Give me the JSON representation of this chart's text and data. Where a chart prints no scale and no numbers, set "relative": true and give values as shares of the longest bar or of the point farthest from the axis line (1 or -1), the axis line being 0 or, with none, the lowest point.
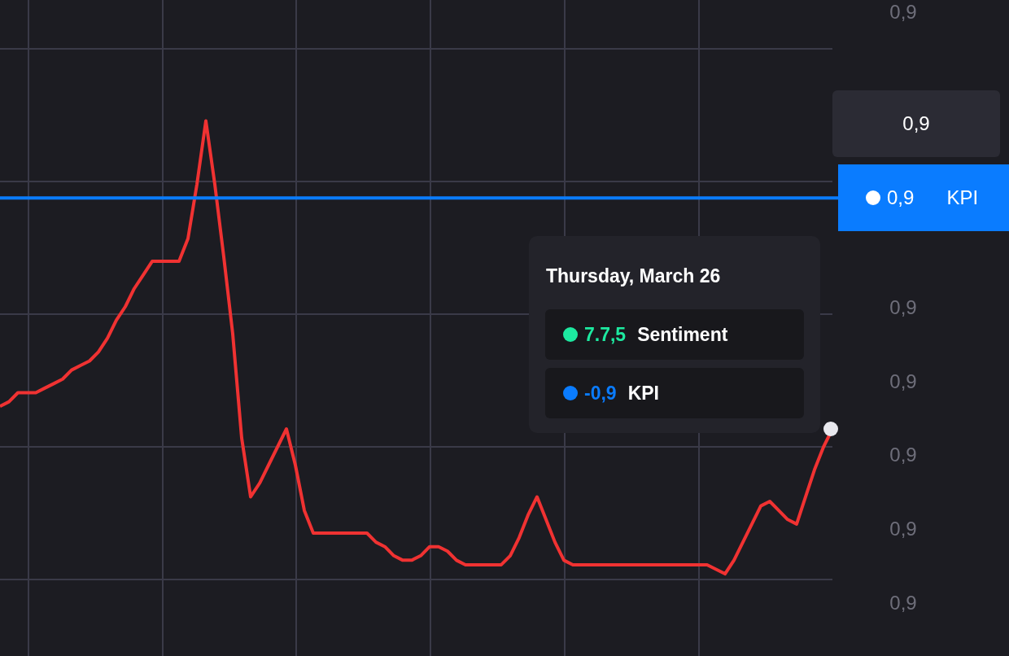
{
  "chart_data": {
    "type": "line",
    "relative": true,
    "categories": [
      null,
      null,
      null,
      null,
      null,
      null,
      null,
      null,
      null,
      null,
      null,
      null,
      null,
      null,
      null,
      null,
      null,
      null,
      null,
      null,
      null,
      null,
      null,
      null,
      null,
      null,
      null,
      null,
      null,
      null,
      null,
      null,
      null,
      null,
      null,
      null,
      null,
      null,
      null,
      null,
      null,
      null,
      null,
      null,
      null,
      null,
      null,
      null,
      null,
      null,
      null,
      null,
      null,
      null,
      null,
      null,
      null,
      null,
      null,
      null,
      null,
      null,
      null,
      null,
      null,
      null,
      null,
      null,
      null,
      null,
      null,
      null,
      null,
      null,
      null,
      null,
      null,
      null,
      null,
      null,
      null,
      null,
      null,
      null,
      null,
      null,
      null,
      null,
      null,
      null,
      null,
      null,
      null,
      null
    ],
    "series": [
      {
        "color": "#f03232",
        "values": [
          0.37,
          0.38,
          0.4,
          0.4,
          0.4,
          0.41,
          0.42,
          0.43,
          0.45,
          0.46,
          0.47,
          0.49,
          0.52,
          0.56,
          0.59,
          0.63,
          0.66,
          0.69,
          0.69,
          0.69,
          0.69,
          0.74,
          0.86,
          1.0,
          0.86,
          0.7,
          0.53,
          0.3,
          0.17,
          0.2,
          0.24,
          0.28,
          0.32,
          0.24,
          0.14,
          0.09,
          0.09,
          0.09,
          0.09,
          0.09,
          0.09,
          0.09,
          0.07,
          0.06,
          0.04,
          0.03,
          0.03,
          0.04,
          0.06,
          0.06,
          0.05,
          0.03,
          0.02,
          0.02,
          0.02,
          0.02,
          0.02,
          0.04,
          0.08,
          0.13,
          0.17,
          0.12,
          0.07,
          0.03,
          0.02,
          0.02,
          0.02,
          0.02,
          0.02,
          0.02,
          0.02,
          0.02,
          0.02,
          0.02,
          0.02,
          0.02,
          0.02,
          0.02,
          0.02,
          0.02,
          0.01,
          0,
          0.03,
          0.07,
          0.11,
          0.15,
          0.16,
          0.14,
          0.12,
          0.11,
          0.17,
          0.23,
          0.28,
          0.32
        ]
      }
    ],
    "grid": true,
    "legend": false,
    "marker": "none",
    "line_style": "solid",
    "ref_lines": [
      {
        "axis": "y",
        "value": 0.83,
        "label": "KPI",
        "color": "#0a7cff"
      }
    ],
    "annotations": [
      "0,9",
      "0,9",
      "0,9",
      "0,9",
      "0,9",
      "0,9",
      "0,9",
      "0,9",
      "Thursday, March 26",
      "7.7,5",
      "Sentiment",
      "-0,9",
      "KPI"
    ]
  }
}
